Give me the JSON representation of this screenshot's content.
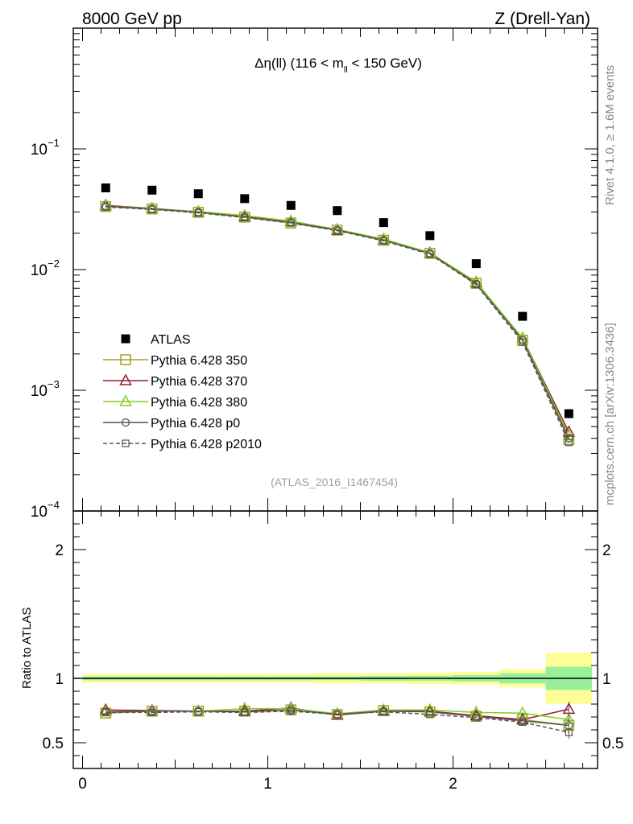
{
  "header": {
    "left": "8000 GeV pp",
    "right": "Z (Drell-Yan)"
  },
  "side": {
    "rivet": "Rivet 4.1.0, ≥ 1.6M events",
    "mcplots": "mcplots.cern.ch [arXiv:1306.3436]"
  },
  "chart_data": [
    {
      "type": "scatter",
      "panel": "main",
      "title_prefix": "Δη(ll) (116 < m",
      "title_sub": "ll",
      "title_suffix": " < 150 GeV)",
      "watermark": "(ATLAS_2016_I1467454)",
      "yscale": "log",
      "xlim": [
        -0.05,
        2.78
      ],
      "ylim": [
        0.0001,
        1.0
      ],
      "yticks": [
        {
          "value": 0.1,
          "base": "10",
          "exp": "−1"
        },
        {
          "value": 0.01,
          "base": "10",
          "exp": "−2"
        },
        {
          "value": 0.001,
          "base": "10",
          "exp": "−3"
        },
        {
          "value": 0.0001,
          "base": "10",
          "exp": "−4"
        }
      ],
      "x": [
        0.125,
        0.375,
        0.625,
        0.875,
        1.125,
        1.375,
        1.625,
        1.875,
        2.125,
        2.375,
        2.625
      ],
      "series": [
        {
          "name": "ATLAS",
          "color": "#000000",
          "marker": "filled-square",
          "line": "none",
          "values": [
            0.0475,
            0.0455,
            0.0425,
            0.0387,
            0.034,
            0.0308,
            0.0245,
            0.0191,
            0.0112,
            0.0041,
            0.00064
          ]
        },
        {
          "name": "Pythia 6.428 350",
          "color": "#a0a020",
          "marker": "open-square",
          "line": "solid",
          "values": [
            0.0333,
            0.0318,
            0.0298,
            0.0272,
            0.0243,
            0.0212,
            0.0175,
            0.0136,
            0.0077,
            0.0026,
            0.00039
          ]
        },
        {
          "name": "Pythia 6.428 370",
          "color": "#9b1b30",
          "marker": "open-triangle",
          "line": "solid",
          "values": [
            0.034,
            0.0321,
            0.03,
            0.0275,
            0.025,
            0.0212,
            0.0177,
            0.0138,
            0.0078,
            0.0027,
            0.00045
          ]
        },
        {
          "name": "Pythia 6.428 380",
          "color": "#7fcf1f",
          "marker": "open-triangle",
          "line": "solid",
          "values": [
            0.0336,
            0.032,
            0.0302,
            0.028,
            0.0252,
            0.0215,
            0.0179,
            0.0138,
            0.0079,
            0.0027,
            0.00042
          ]
        },
        {
          "name": "Pythia 6.428 p0",
          "color": "#555555",
          "marker": "open-circle",
          "line": "solid",
          "values": [
            0.0335,
            0.0318,
            0.0299,
            0.0273,
            0.0246,
            0.0213,
            0.0175,
            0.0136,
            0.0076,
            0.0026,
            0.0004
          ]
        },
        {
          "name": "Pythia 6.428 p2010",
          "color": "#555555",
          "marker": "open-square-small",
          "line": "dashed",
          "values": [
            0.033,
            0.0315,
            0.0295,
            0.027,
            0.0243,
            0.021,
            0.0173,
            0.0134,
            0.0075,
            0.0025,
            0.00037
          ]
        }
      ]
    },
    {
      "type": "scatter",
      "panel": "ratio",
      "ylabel": "Ratio to ATLAS",
      "xlim": [
        -0.05,
        2.78
      ],
      "ylim": [
        0.3,
        2.3
      ],
      "yticks": [
        {
          "value": 0.5,
          "label": "0.5"
        },
        {
          "value": 1,
          "label": "1"
        },
        {
          "value": 2,
          "label": "2"
        }
      ],
      "xticks": [
        {
          "value": 0,
          "label": "0"
        },
        {
          "value": 1,
          "label": "1"
        },
        {
          "value": 2,
          "label": "2"
        }
      ],
      "bands": {
        "edges": [
          0,
          0.25,
          0.5,
          0.75,
          1.0,
          1.25,
          1.5,
          1.75,
          2.0,
          2.25,
          2.5,
          2.75
        ],
        "stat": [
          0.015,
          0.015,
          0.015,
          0.015,
          0.015,
          0.015,
          0.018,
          0.02,
          0.025,
          0.04,
          0.09
        ],
        "total": [
          0.035,
          0.035,
          0.035,
          0.035,
          0.035,
          0.04,
          0.04,
          0.045,
          0.05,
          0.07,
          0.2
        ],
        "stat_color": "#99f099",
        "total_color": "#fefe99"
      },
      "series": [
        {
          "name": "Pythia 6.428 350",
          "values": [
            0.73,
            0.745,
            0.745,
            0.745,
            0.755,
            0.72,
            0.75,
            0.74,
            0.705,
            0.68,
            0.635
          ]
        },
        {
          "name": "Pythia 6.428 370",
          "values": [
            0.755,
            0.75,
            0.745,
            0.745,
            0.77,
            0.715,
            0.745,
            0.745,
            0.71,
            0.68,
            0.76
          ]
        },
        {
          "name": "Pythia 6.428 380",
          "values": [
            0.74,
            0.745,
            0.745,
            0.765,
            0.765,
            0.725,
            0.755,
            0.755,
            0.735,
            0.73,
            0.68
          ]
        },
        {
          "name": "Pythia 6.428 p0",
          "values": [
            0.74,
            0.745,
            0.745,
            0.74,
            0.755,
            0.72,
            0.745,
            0.74,
            0.705,
            0.67,
            0.635
          ]
        },
        {
          "name": "Pythia 6.428 p2010",
          "values": [
            0.735,
            0.735,
            0.74,
            0.735,
            0.745,
            0.72,
            0.74,
            0.72,
            0.695,
            0.66,
            0.58
          ]
        }
      ]
    }
  ]
}
